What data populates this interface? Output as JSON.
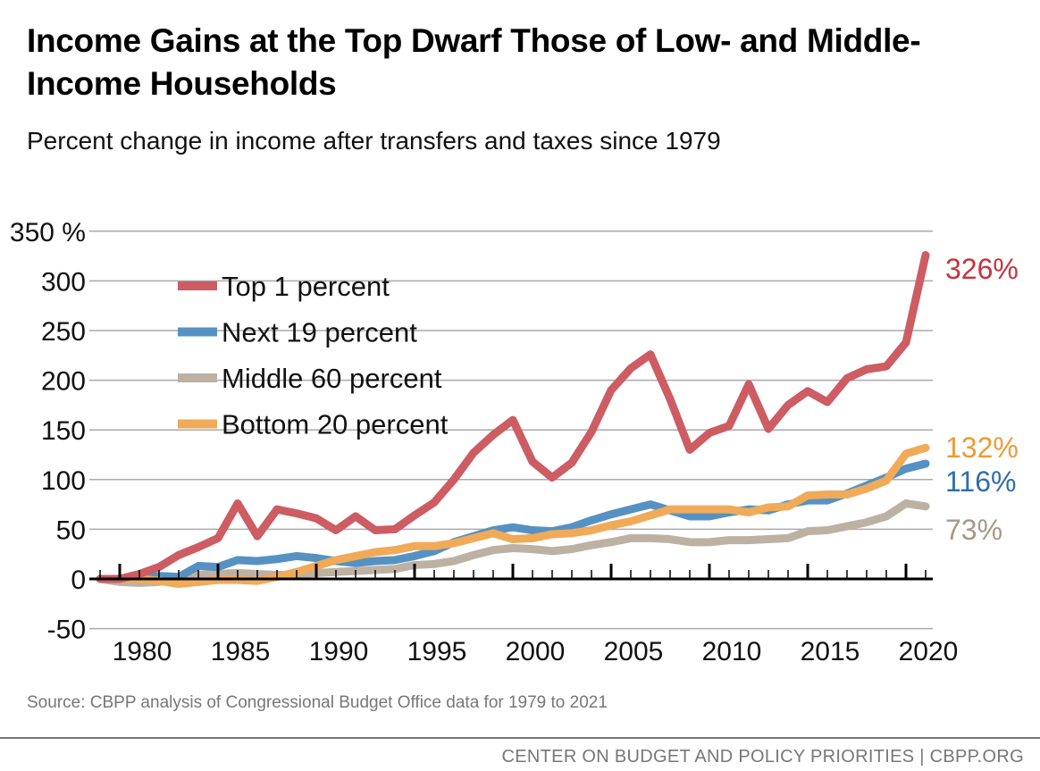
{
  "title": "Income Gains at the Top Dwarf Those of Low- and Middle-Income Households",
  "subtitle": "Percent change in income after transfers and taxes since 1979",
  "source": "Source: CBPP analysis of Congressional Budget Office data for 1979 to 2021",
  "footer": "CENTER ON BUDGET AND POLICY PRIORITIES | CBPP.ORG",
  "chart_data": {
    "type": "line",
    "title": "Income Gains at the Top Dwarf Those of Low- and Middle-Income Households",
    "subtitle": "Percent change in income after transfers and taxes since 1979",
    "xlabel": "",
    "ylabel": "",
    "xlim": [
      1979,
      2021
    ],
    "ylim": [
      -50,
      350
    ],
    "x_ticks": [
      1980,
      1985,
      1990,
      1995,
      2000,
      2005,
      2010,
      2015,
      2020
    ],
    "y_ticks": [
      -50,
      0,
      50,
      100,
      150,
      200,
      250,
      300,
      350
    ],
    "y_tick_labels": [
      "-50",
      "0",
      "50",
      "100",
      "150",
      "200",
      "250",
      "300",
      "350 %"
    ],
    "grid": true,
    "legend": "top-left",
    "x": [
      1979,
      1980,
      1981,
      1982,
      1983,
      1984,
      1985,
      1986,
      1987,
      1988,
      1989,
      1990,
      1991,
      1992,
      1993,
      1994,
      1995,
      1996,
      1997,
      1998,
      1999,
      2000,
      2001,
      2002,
      2003,
      2004,
      2005,
      2006,
      2007,
      2008,
      2009,
      2010,
      2011,
      2012,
      2013,
      2014,
      2015,
      2016,
      2017,
      2018,
      2019,
      2020,
      2021
    ],
    "series": [
      {
        "name": "Top 1 percent",
        "color": "#cd5c63",
        "end_label": "326%",
        "end_label_color": "#c8323c",
        "values": [
          0,
          0,
          5,
          12,
          24,
          32,
          41,
          76,
          43,
          70,
          66,
          61,
          49,
          63,
          49,
          50,
          64,
          77,
          100,
          127,
          145,
          160,
          118,
          102,
          117,
          148,
          190,
          212,
          226,
          181,
          130,
          147,
          154,
          196,
          151,
          175,
          189,
          178,
          202,
          211,
          214,
          238,
          326
        ]
      },
      {
        "name": "Next 19 percent",
        "color": "#5592c3",
        "end_label": "116%",
        "end_label_color": "#2f6eab",
        "values": [
          0,
          0,
          0,
          3,
          2,
          13,
          12,
          19,
          18,
          20,
          23,
          21,
          18,
          16,
          18,
          19,
          23,
          28,
          37,
          43,
          49,
          52,
          49,
          48,
          52,
          59,
          65,
          70,
          75,
          69,
          63,
          63,
          67,
          70,
          69,
          75,
          79,
          79,
          86,
          94,
          102,
          111,
          116
        ]
      },
      {
        "name": "Middle 60 percent",
        "color": "#bdb1a4",
        "end_label": "73%",
        "end_label_color": "#a69886",
        "values": [
          0,
          -3,
          -4,
          -3,
          1,
          4,
          5,
          6,
          5,
          4,
          4,
          6,
          7,
          8,
          9,
          10,
          14,
          15,
          18,
          24,
          29,
          31,
          30,
          28,
          30,
          34,
          37,
          41,
          41,
          40,
          37,
          37,
          39,
          39,
          40,
          41,
          48,
          49,
          53,
          57,
          63,
          76,
          73
        ]
      },
      {
        "name": "Bottom 20 percent",
        "color": "#f0aa58",
        "end_label": "132%",
        "end_label_color": "#ee9a35",
        "values": [
          0,
          0,
          0,
          -2,
          -5,
          -3,
          -1,
          -1,
          -2,
          2,
          7,
          13,
          19,
          23,
          27,
          29,
          33,
          33,
          36,
          41,
          46,
          40,
          41,
          45,
          46,
          49,
          54,
          58,
          64,
          70,
          70,
          70,
          70,
          67,
          72,
          73,
          84,
          85,
          85,
          91,
          99,
          126,
          132
        ]
      }
    ]
  }
}
